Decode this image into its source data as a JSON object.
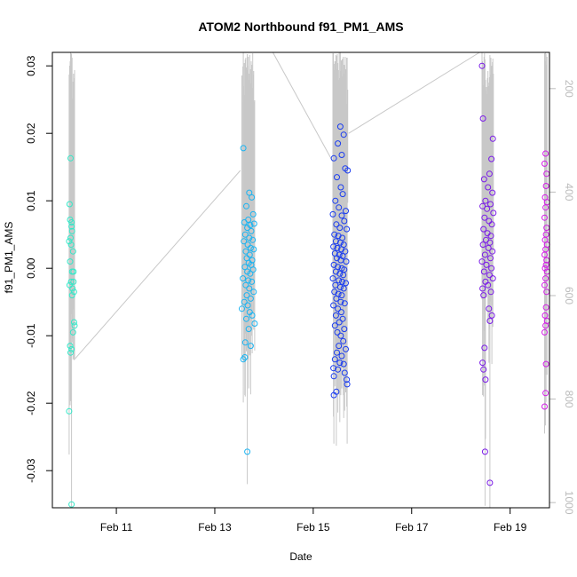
{
  "chart_data": {
    "type": "scatter",
    "title": "ATOM2 Northbound f91_PM1_AMS",
    "xlabel": "Date",
    "ylabel": "f91_PM1_AMS",
    "x_ticks": [
      "Feb 11",
      "Feb 13",
      "Feb 15",
      "Feb 17",
      "Feb 19"
    ],
    "x_tick_days": [
      11,
      13,
      15,
      17,
      19
    ],
    "xlim_days": [
      9.7,
      19.8
    ],
    "ylim": [
      -0.0355,
      0.032
    ],
    "y_ticks": [
      -0.03,
      -0.02,
      -0.01,
      0.0,
      0.01,
      0.02,
      0.03
    ],
    "y_tick_labels": [
      "-0.03",
      "-0.02",
      "-0.01",
      "0.00",
      "0.01",
      "0.02",
      "0.03"
    ],
    "y2_ticks": [
      200,
      400,
      600,
      800,
      1000
    ],
    "y2_tick_labels": [
      "200",
      "400",
      "600",
      "800",
      "1000"
    ],
    "y2lim": [
      1010,
      130
    ],
    "grid": false,
    "legend": "none",
    "altitude_color": "#c8c8c8",
    "series": [
      {
        "color": "#33e8c8",
        "points": [
          [
            10.07,
            0.0163
          ],
          [
            10.05,
            0.0095
          ],
          [
            10.06,
            0.0072
          ],
          [
            10.09,
            0.0068
          ],
          [
            10.04,
            0.004
          ],
          [
            10.08,
            0.0035
          ],
          [
            10.1,
            0.0055
          ],
          [
            10.09,
            0.0062
          ],
          [
            10.07,
            0.0045
          ],
          [
            10.12,
            0.0025
          ],
          [
            10.06,
            0.001
          ],
          [
            10.1,
            -0.0005
          ],
          [
            10.13,
            -0.0005
          ],
          [
            10.08,
            -0.002
          ],
          [
            10.13,
            -0.002
          ],
          [
            10.05,
            -0.0025
          ],
          [
            10.11,
            -0.003
          ],
          [
            10.14,
            -0.0035
          ],
          [
            10.1,
            -0.004
          ],
          [
            10.14,
            -0.008
          ],
          [
            10.15,
            -0.0085
          ],
          [
            10.12,
            -0.0095
          ],
          [
            10.06,
            -0.0115
          ],
          [
            10.09,
            -0.012
          ],
          [
            10.07,
            -0.0125
          ],
          [
            10.04,
            -0.0212
          ],
          [
            10.09,
            -0.035
          ]
        ]
      },
      {
        "color": "#1ab4f2",
        "points": [
          [
            13.58,
            0.0178
          ],
          [
            13.7,
            0.0112
          ],
          [
            13.75,
            0.0105
          ],
          [
            13.64,
            0.0092
          ],
          [
            13.78,
            0.008
          ],
          [
            13.68,
            0.0072
          ],
          [
            13.6,
            0.0068
          ],
          [
            13.72,
            0.0064
          ],
          [
            13.8,
            0.0066
          ],
          [
            13.66,
            0.006
          ],
          [
            13.74,
            0.0055
          ],
          [
            13.62,
            0.005
          ],
          [
            13.7,
            0.0045
          ],
          [
            13.77,
            0.0042
          ],
          [
            13.59,
            0.004
          ],
          [
            13.67,
            0.0035
          ],
          [
            13.73,
            0.003
          ],
          [
            13.79,
            0.0028
          ],
          [
            13.63,
            0.0025
          ],
          [
            13.71,
            0.002
          ],
          [
            13.65,
            0.0015
          ],
          [
            13.76,
            0.0012
          ],
          [
            13.69,
            0.0008
          ],
          [
            13.74,
            0.0005
          ],
          [
            13.61,
            0.0002
          ],
          [
            13.78,
            -0.0002
          ],
          [
            13.66,
            -0.0005
          ],
          [
            13.72,
            -0.0008
          ],
          [
            13.57,
            -0.0015
          ],
          [
            13.68,
            -0.0018
          ],
          [
            13.75,
            -0.002
          ],
          [
            13.63,
            -0.0025
          ],
          [
            13.7,
            -0.003
          ],
          [
            13.79,
            -0.0035
          ],
          [
            13.65,
            -0.004
          ],
          [
            13.73,
            -0.0045
          ],
          [
            13.6,
            -0.005
          ],
          [
            13.67,
            -0.0055
          ],
          [
            13.55,
            -0.006
          ],
          [
            13.71,
            -0.0065
          ],
          [
            13.76,
            -0.007
          ],
          [
            13.64,
            -0.0075
          ],
          [
            13.81,
            -0.0082
          ],
          [
            13.69,
            -0.009
          ],
          [
            13.62,
            -0.011
          ],
          [
            13.73,
            -0.0115
          ],
          [
            13.58,
            -0.0135
          ],
          [
            13.61,
            -0.0132
          ],
          [
            13.66,
            -0.0272
          ]
        ]
      },
      {
        "color": "#1a3cf0",
        "points": [
          [
            15.55,
            0.021
          ],
          [
            15.62,
            0.0198
          ],
          [
            15.5,
            0.0185
          ],
          [
            15.58,
            0.0168
          ],
          [
            15.42,
            0.0163
          ],
          [
            15.65,
            0.0148
          ],
          [
            15.7,
            0.0145
          ],
          [
            15.48,
            0.0135
          ],
          [
            15.56,
            0.012
          ],
          [
            15.6,
            0.011
          ],
          [
            15.45,
            0.01
          ],
          [
            15.52,
            0.009
          ],
          [
            15.66,
            0.0085
          ],
          [
            15.4,
            0.008
          ],
          [
            15.58,
            0.0078
          ],
          [
            15.63,
            0.007
          ],
          [
            15.47,
            0.0065
          ],
          [
            15.54,
            0.006
          ],
          [
            15.68,
            0.0058
          ],
          [
            15.43,
            0.005
          ],
          [
            15.51,
            0.0048
          ],
          [
            15.59,
            0.0045
          ],
          [
            15.46,
            0.004
          ],
          [
            15.55,
            0.0038
          ],
          [
            15.62,
            0.0035
          ],
          [
            15.41,
            0.0032
          ],
          [
            15.49,
            0.003
          ],
          [
            15.57,
            0.0028
          ],
          [
            15.65,
            0.0025
          ],
          [
            15.44,
            0.0022
          ],
          [
            15.53,
            0.002
          ],
          [
            15.6,
            0.0018
          ],
          [
            15.48,
            0.0015
          ],
          [
            15.56,
            0.0012
          ],
          [
            15.67,
            0.001
          ],
          [
            15.42,
            0.0005
          ],
          [
            15.5,
            0.0002
          ],
          [
            15.58,
            0.0
          ],
          [
            15.63,
            -0.0002
          ],
          [
            15.46,
            -0.0005
          ],
          [
            15.54,
            -0.0008
          ],
          [
            15.61,
            -0.001
          ],
          [
            15.4,
            -0.0015
          ],
          [
            15.52,
            -0.0018
          ],
          [
            15.59,
            -0.002
          ],
          [
            15.66,
            -0.0022
          ],
          [
            15.45,
            -0.0025
          ],
          [
            15.55,
            -0.0028
          ],
          [
            15.62,
            -0.003
          ],
          [
            15.43,
            -0.0035
          ],
          [
            15.51,
            -0.0038
          ],
          [
            15.58,
            -0.004
          ],
          [
            15.47,
            -0.0045
          ],
          [
            15.56,
            -0.005
          ],
          [
            15.64,
            -0.0052
          ],
          [
            15.41,
            -0.0055
          ],
          [
            15.5,
            -0.006
          ],
          [
            15.57,
            -0.0065
          ],
          [
            15.46,
            -0.007
          ],
          [
            15.6,
            -0.0075
          ],
          [
            15.53,
            -0.008
          ],
          [
            15.44,
            -0.0085
          ],
          [
            15.63,
            -0.009
          ],
          [
            15.49,
            -0.0095
          ],
          [
            15.56,
            -0.01
          ],
          [
            15.61,
            -0.0108
          ],
          [
            15.52,
            -0.0115
          ],
          [
            15.66,
            -0.012
          ],
          [
            15.48,
            -0.0125
          ],
          [
            15.58,
            -0.013
          ],
          [
            15.44,
            -0.0135
          ],
          [
            15.54,
            -0.014
          ],
          [
            15.62,
            -0.0142
          ],
          [
            15.41,
            -0.0148
          ],
          [
            15.5,
            -0.015
          ],
          [
            15.64,
            -0.0155
          ],
          [
            15.42,
            -0.016
          ],
          [
            15.68,
            -0.0165
          ],
          [
            15.69,
            -0.0172
          ],
          [
            15.47,
            -0.0183
          ],
          [
            15.42,
            -0.0188
          ]
        ]
      },
      {
        "color": "#7a1ae8",
        "points": [
          [
            18.43,
            0.03
          ],
          [
            18.45,
            0.0222
          ],
          [
            18.65,
            0.0192
          ],
          [
            18.62,
            0.0162
          ],
          [
            18.58,
            0.014
          ],
          [
            18.47,
            0.0132
          ],
          [
            18.55,
            0.012
          ],
          [
            18.64,
            0.0112
          ],
          [
            18.5,
            0.01
          ],
          [
            18.6,
            0.0095
          ],
          [
            18.44,
            0.0092
          ],
          [
            18.53,
            0.0088
          ],
          [
            18.66,
            0.0082
          ],
          [
            18.48,
            0.0075
          ],
          [
            18.57,
            0.007
          ],
          [
            18.63,
            0.0065
          ],
          [
            18.46,
            0.0058
          ],
          [
            18.54,
            0.0052
          ],
          [
            18.61,
            0.0048
          ],
          [
            18.51,
            0.0042
          ],
          [
            18.59,
            0.0038
          ],
          [
            18.45,
            0.0035
          ],
          [
            18.56,
            0.003
          ],
          [
            18.64,
            0.0025
          ],
          [
            18.49,
            0.002
          ],
          [
            18.6,
            0.0015
          ],
          [
            18.43,
            0.001
          ],
          [
            18.52,
            0.0005
          ],
          [
            18.62,
            0.0
          ],
          [
            18.47,
            -0.0005
          ],
          [
            18.58,
            -0.001
          ],
          [
            18.65,
            -0.0015
          ],
          [
            18.5,
            -0.002
          ],
          [
            18.55,
            -0.0025
          ],
          [
            18.44,
            -0.003
          ],
          [
            18.61,
            -0.0035
          ],
          [
            18.46,
            -0.004
          ],
          [
            18.57,
            -0.006
          ],
          [
            18.63,
            -0.007
          ],
          [
            18.59,
            -0.0078
          ],
          [
            18.48,
            -0.0118
          ],
          [
            18.44,
            -0.014
          ],
          [
            18.46,
            -0.015
          ],
          [
            18.5,
            -0.0165
          ],
          [
            18.49,
            -0.0272
          ],
          [
            18.59,
            -0.0318
          ]
        ]
      },
      {
        "color": "#d21ae6",
        "points": [
          [
            19.72,
            0.017
          ],
          [
            19.7,
            0.0155
          ],
          [
            19.74,
            0.014
          ],
          [
            19.73,
            0.0122
          ],
          [
            19.71,
            0.0105
          ],
          [
            19.75,
            0.0098
          ],
          [
            19.72,
            0.009
          ],
          [
            19.7,
            0.0075
          ],
          [
            19.74,
            0.006
          ],
          [
            19.73,
            0.005
          ],
          [
            19.71,
            0.0042
          ],
          [
            19.75,
            0.0035
          ],
          [
            19.72,
            0.0028
          ],
          [
            19.7,
            0.002
          ],
          [
            19.74,
            0.0012
          ],
          [
            19.73,
            0.0005
          ],
          [
            19.71,
            0.0
          ],
          [
            19.75,
            -0.0005
          ],
          [
            19.72,
            -0.0015
          ],
          [
            19.7,
            -0.0025
          ],
          [
            19.74,
            -0.0035
          ],
          [
            19.73,
            -0.0058
          ],
          [
            19.71,
            -0.007
          ],
          [
            19.75,
            -0.0078
          ],
          [
            19.72,
            -0.0085
          ],
          [
            19.7,
            -0.0095
          ],
          [
            19.73,
            -0.0142
          ],
          [
            19.72,
            -0.0185
          ],
          [
            19.7,
            -0.0205
          ]
        ]
      }
    ]
  }
}
